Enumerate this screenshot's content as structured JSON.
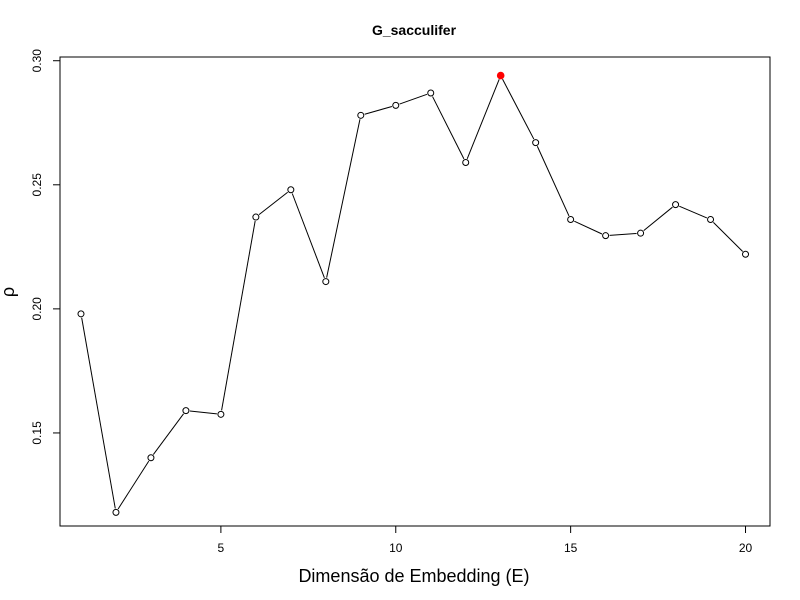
{
  "chart_data": {
    "type": "line",
    "title": "G_sacculifer",
    "xlabel": "Dimensão de Embedding (E)",
    "ylabel": "ρ",
    "x": [
      1,
      2,
      3,
      4,
      5,
      6,
      7,
      8,
      9,
      10,
      11,
      12,
      13,
      14,
      15,
      16,
      17,
      18,
      19,
      20
    ],
    "y": [
      0.198,
      0.118,
      0.14,
      0.159,
      0.1575,
      0.237,
      0.248,
      0.211,
      0.278,
      0.282,
      0.287,
      0.259,
      0.294,
      0.267,
      0.236,
      0.2295,
      0.2305,
      0.242,
      0.236,
      0.222
    ],
    "highlight": {
      "x": 13,
      "y": 0.294,
      "color": "#ff0000"
    },
    "xticks": [
      "5",
      "10",
      "15",
      "20"
    ],
    "xtick_values": [
      5,
      10,
      15,
      20
    ],
    "yticks": [
      "0.15",
      "0.20",
      "0.25",
      "0.30"
    ],
    "ytick_values": [
      0.15,
      0.2,
      0.25,
      0.3
    ],
    "xlim": [
      0.4,
      20.7
    ],
    "ylim": [
      0.1125,
      0.3015
    ],
    "marker": "open-circle",
    "line_color": "#000000",
    "grid": false,
    "legend": "none"
  }
}
